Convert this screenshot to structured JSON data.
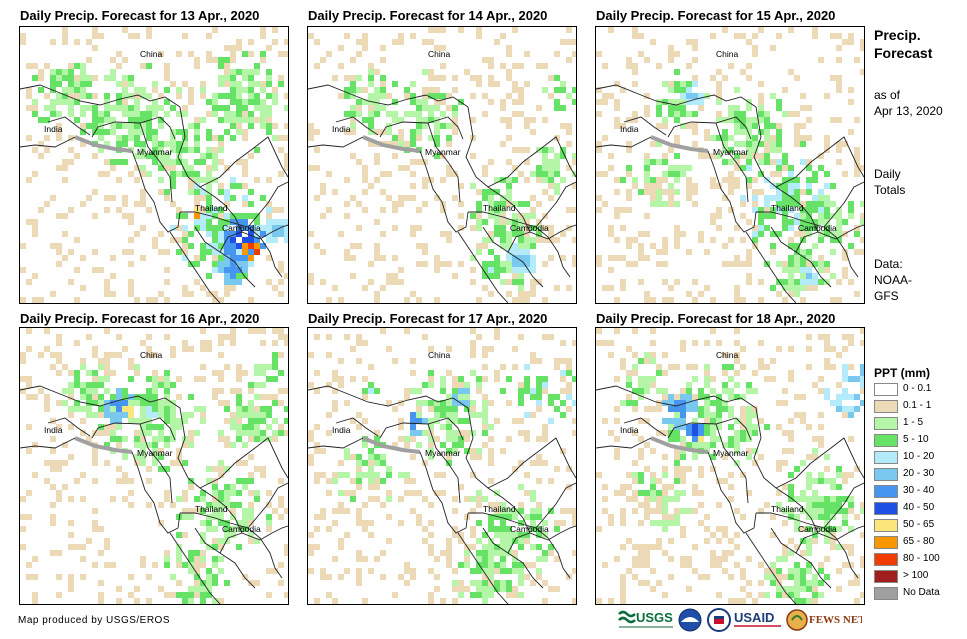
{
  "panels": [
    {
      "title": "Daily Precip. Forecast for 13 Apr., 2020"
    },
    {
      "title": "Daily Precip. Forecast for 14 Apr., 2020"
    },
    {
      "title": "Daily Precip. Forecast for 15 Apr., 2020"
    },
    {
      "title": "Daily Precip. Forecast for 16 Apr., 2020"
    },
    {
      "title": "Daily Precip. Forecast for 17 Apr., 2020"
    },
    {
      "title": "Daily Precip. Forecast for 18 Apr., 2020"
    }
  ],
  "map_labels": {
    "china": "China",
    "india": "India",
    "myanmar": "Myanmar",
    "thailand": "Thailand",
    "cambodia": "Cambodia"
  },
  "sidebar": {
    "title_line1": "Precip.",
    "title_line2": "Forecast",
    "as_of_line1": "as of",
    "as_of_line2": "Apr 13, 2020",
    "totals_line1": "Daily",
    "totals_line2": "Totals",
    "data_line1": "Data:",
    "data_line2": "NOAA-",
    "data_line3": "GFS"
  },
  "legend": {
    "title": "PPT (mm)",
    "items": [
      {
        "label": "0 - 0.1",
        "color": "#ffffff"
      },
      {
        "label": "0.1 - 1",
        "color": "#ecd9b6"
      },
      {
        "label": "1 - 5",
        "color": "#b4f5a8"
      },
      {
        "label": "5 - 10",
        "color": "#66e266"
      },
      {
        "label": "10 - 20",
        "color": "#b4ebfa"
      },
      {
        "label": "20 - 30",
        "color": "#78c8f0"
      },
      {
        "label": "30 - 40",
        "color": "#4696f0"
      },
      {
        "label": "40 - 50",
        "color": "#1e50e6"
      },
      {
        "label": "50 - 65",
        "color": "#fae67a"
      },
      {
        "label": "65 - 80",
        "color": "#fa9600"
      },
      {
        "label": "80 - 100",
        "color": "#f03c00"
      },
      {
        "label": "> 100",
        "color": "#a01e1e"
      },
      {
        "label": "No Data",
        "color": "#a0a0a0"
      }
    ]
  },
  "credit": "Map produced by USGS/EROS",
  "logos": {
    "usgs": "USGS",
    "usaid": "USAID",
    "fewsnet": "FEWS NET"
  }
}
